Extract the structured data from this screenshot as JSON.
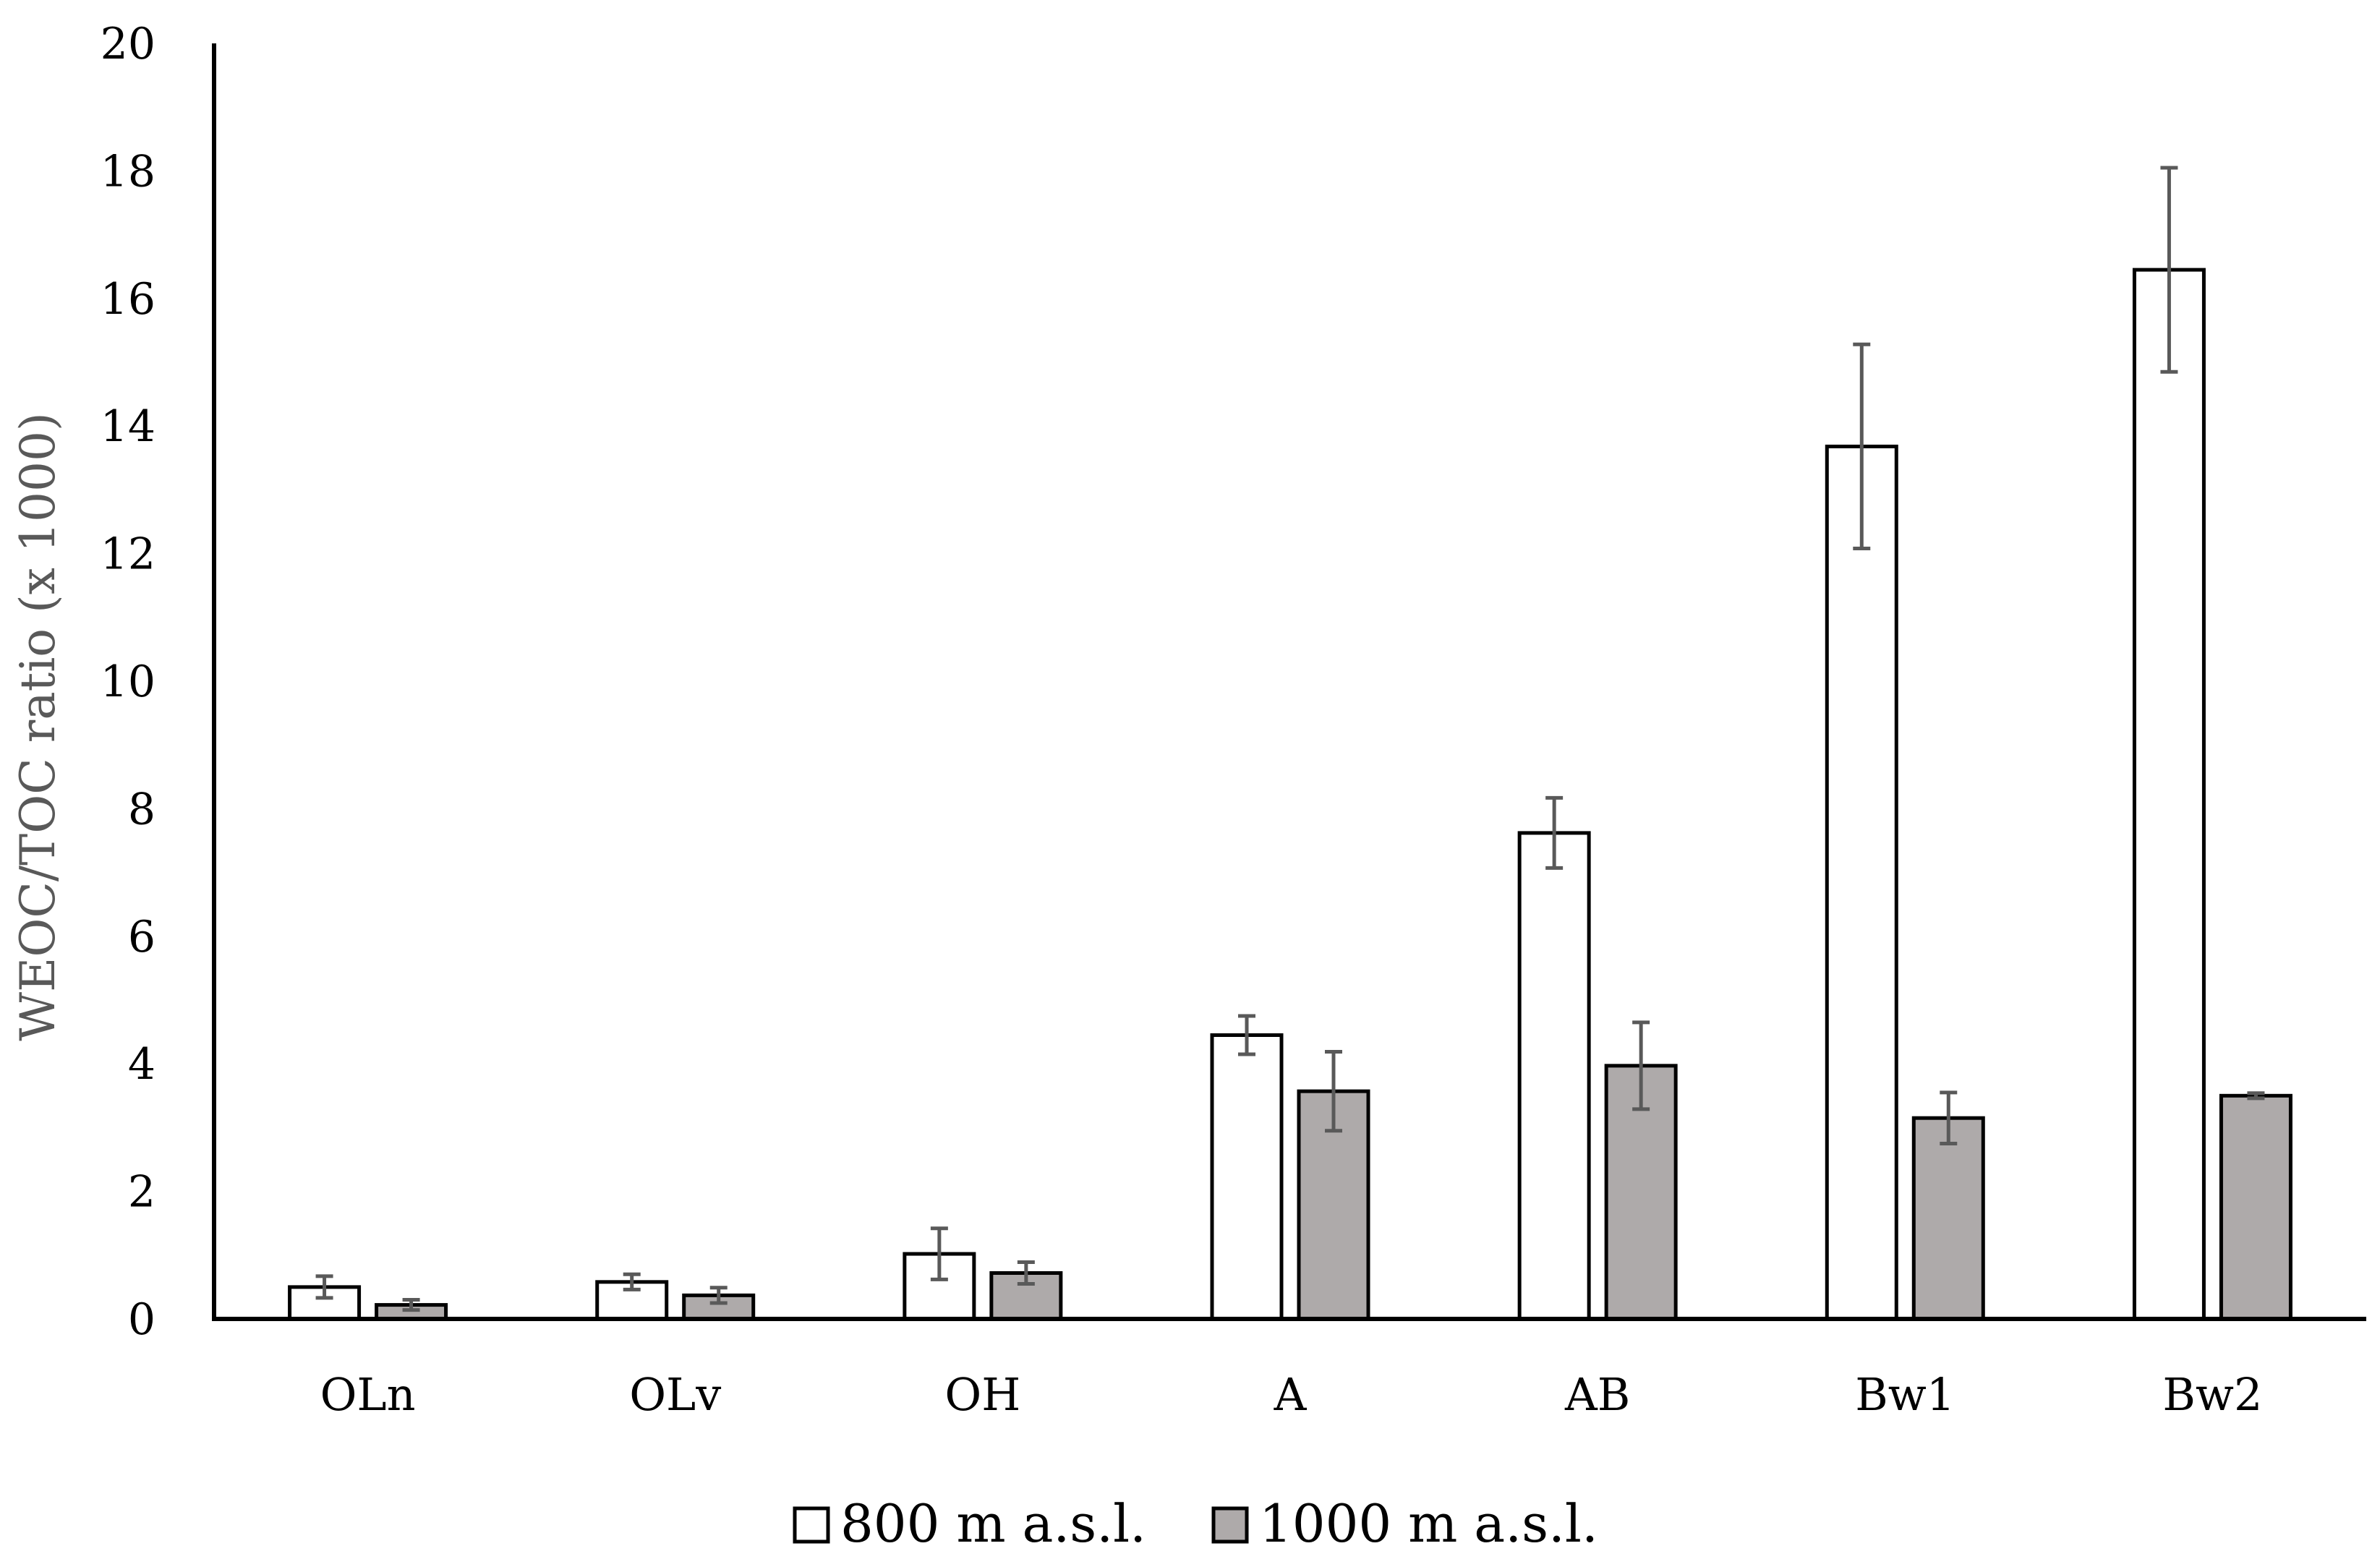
{
  "chart_data": {
    "type": "bar",
    "title": "",
    "xlabel": "",
    "ylabel": "WEOC/TOC ratio (x 1000)",
    "ylim": [
      0,
      20
    ],
    "yticks": [
      0,
      2,
      4,
      6,
      8,
      10,
      12,
      14,
      16,
      18,
      20
    ],
    "categories": [
      "OLn",
      "OLv",
      "OH",
      "A",
      "AB",
      "Bw1",
      "Bw2"
    ],
    "legend_position": "bottom",
    "grid": false,
    "series": [
      {
        "name": "800 m a.s.l.",
        "color": "#ffffff",
        "values": [
          0.5,
          0.58,
          1.02,
          4.45,
          7.62,
          13.68,
          16.45
        ],
        "errors": [
          0.17,
          0.12,
          0.4,
          0.3,
          0.55,
          1.6,
          1.6
        ]
      },
      {
        "name": "1000 m a.s.l.",
        "color": "#aeaaaa",
        "values": [
          0.22,
          0.37,
          0.72,
          3.57,
          3.97,
          3.15,
          3.5
        ],
        "errors": [
          0.08,
          0.12,
          0.17,
          0.62,
          0.68,
          0.4,
          0.04
        ]
      }
    ]
  }
}
